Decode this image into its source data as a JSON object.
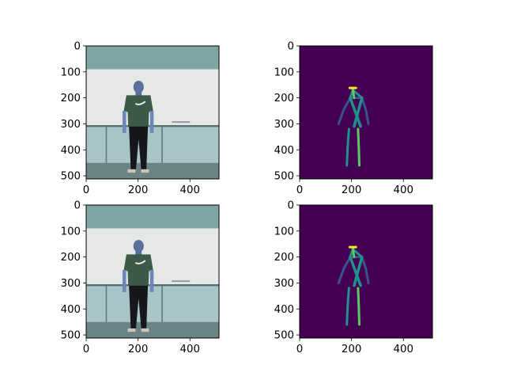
{
  "figure": {
    "background": "#ffffff"
  },
  "chart_data": [
    {
      "type": "image",
      "content": "photo",
      "description": "person standing in front of whiteboard and cabinets",
      "xlim": [
        0,
        512
      ],
      "ylim": [
        512,
        0
      ],
      "xticks": [
        0,
        200,
        400
      ],
      "yticks": [
        0,
        100,
        200,
        300,
        400,
        500
      ],
      "title": "",
      "xlabel": "",
      "ylabel": ""
    },
    {
      "type": "heatmap",
      "content": "pose-skeleton",
      "colormap": "viridis",
      "xlim": [
        0,
        512
      ],
      "ylim": [
        512,
        0
      ],
      "xticks": [
        0,
        200,
        400
      ],
      "yticks": [
        0,
        100,
        200,
        300,
        400,
        500
      ],
      "title": "",
      "xlabel": "",
      "ylabel": ""
    },
    {
      "type": "image",
      "content": "photo",
      "description": "person standing in front of whiteboard and cabinets",
      "xlim": [
        0,
        512
      ],
      "ylim": [
        512,
        0
      ],
      "xticks": [
        0,
        200,
        400
      ],
      "yticks": [
        0,
        100,
        200,
        300,
        400,
        500
      ],
      "title": "",
      "xlabel": "",
      "ylabel": ""
    },
    {
      "type": "heatmap",
      "content": "pose-skeleton",
      "colormap": "viridis",
      "xlim": [
        0,
        512
      ],
      "ylim": [
        512,
        0
      ],
      "xticks": [
        0,
        200,
        400
      ],
      "yticks": [
        0,
        100,
        200,
        300,
        400,
        500
      ],
      "title": "",
      "xlabel": "",
      "ylabel": ""
    }
  ],
  "colors": {
    "heatmap_background": "#440154",
    "limb_dark": "#3b528b",
    "limb_mid": "#21918c",
    "limb_light": "#5ec962",
    "head_marker": "#fde725",
    "wall": "#e6e8e6",
    "ceiling": "#7fa6a5",
    "cabinet": "#a9c5c7",
    "floor": "#6c8385"
  }
}
